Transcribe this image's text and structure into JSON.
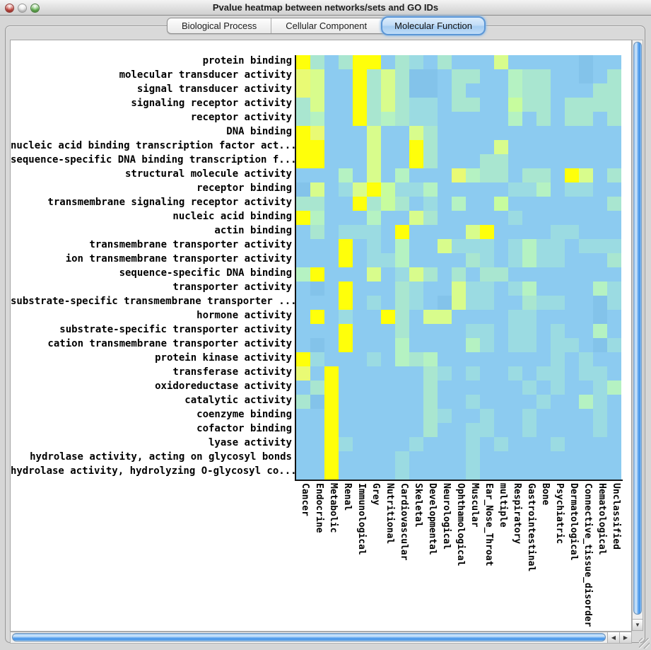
{
  "window": {
    "title": "Pvalue heatmap between networks/sets and GO IDs",
    "traffic_lights": {
      "close": "#C9463D",
      "minimize": "#E4E4E4",
      "zoom": "#67B853"
    }
  },
  "tabs": [
    {
      "label": "Biological Process",
      "selected": false
    },
    {
      "label": "Cellular Component",
      "selected": false
    },
    {
      "label": "Molecular Function",
      "selected": true
    }
  ],
  "scrollbars": {
    "left_arrow": "◀",
    "right_arrow": "▶",
    "down_arrow": "▼"
  },
  "chart_data": {
    "type": "heatmap",
    "title": "Pvalue heatmap between networks/sets and GO IDs",
    "rows": [
      "protein binding",
      "molecular transducer activity",
      "signal transducer activity",
      "signaling receptor activity",
      "receptor activity",
      "DNA binding",
      "nucleic acid binding transcription factor act...",
      "sequence-specific DNA binding transcription f...",
      "structural molecule activity",
      "receptor binding",
      "transmembrane signaling receptor activity",
      "nucleic acid binding",
      "actin binding",
      "transmembrane transporter activity",
      "ion transmembrane transporter activity",
      "sequence-specific DNA binding",
      "transporter activity",
      "substrate-specific transmembrane transporter ...",
      "hormone activity",
      "substrate-specific transporter activity",
      "cation transmembrane transporter activity",
      "protein kinase activity",
      "transferase activity",
      "oxidoreductase activity",
      "catalytic activity",
      "coenzyme binding",
      "cofactor binding",
      "lyase activity",
      "hydrolase activity, acting on glycosyl bonds",
      "hydrolase activity, hydrolyzing O-glycosyl co..."
    ],
    "columns": [
      "Cancer",
      "Endocrine",
      "Metabolic",
      "Renal",
      "Immunological",
      "Grey",
      "Nutritional",
      "Cardiovascular",
      "Skeletal",
      "Developmental",
      "Neurological",
      "Ophthamological",
      "Muscular",
      "Ear_Nose_Throat",
      "multiple",
      "Respiratory",
      "Gastrointestinal",
      "Bone",
      "Psychiatric",
      "Dermatological",
      "Connective_tissue_disorder",
      "Hematological",
      "Unclassified"
    ],
    "palette": {
      "b": "#8CCBF0",
      "B": "#83C3EA",
      "t": "#9BDBE2",
      "m": "#A9E6D0",
      "g": "#B5F2C2",
      "G": "#C7FC9E",
      "y": "#D8FC8C",
      "x": "#E9FA74",
      "Y": "#FFFF0A"
    },
    "cells": [
      "YmbmYYbmtbmbbbybbbbbBbb",
      "xybbYmymBBbmmbbgmmbbBbm",
      "xybbYmymBBbmbbbgmmbbbmm",
      "mybbYmymttbmmbbGmmbmmmm",
      "mgbbYmgmttbbbbbgbmbmmbm",
      "Yxbbbybbymbbbbbbbbbbbbb",
      "YYbbbybbYmbbbbybbbbbbbb",
      "YYbbbybbYmbbbmmbbbbbbbb",
      "bbbgbybgbbbxgmmbmmbYybm",
      "BybtyYGttgbbbbbttgbttbb",
      "mmbbYmGmbtbgbbGbbbbbbbm",
      "Ygbbbgbbymbbbbbtbbbbbbb",
      "bmbtttbYbbbbyYbbbbttbbb",
      "bbbYbtbgbbytttbtgttbttt",
      "bbbYbttgbbbbmtbtgttbbbm",
      "gYbbbybtymbmbmmbbbbbbbb",
      "bBbYbbbmtbbyttbtgbbbbgt",
      "bbbYbtbmtbByttbbmttbbBt",
      "bYbtbbYmbyybbbbttbbbbBb",
      "bbbYbbbmbbbbttbttbtbbgb",
      "bBbYbbbgbbbbgtbttbttbBt",
      "Ytbbbtbgmgbbbbbbbbtbtbb",
      "xbYbbbbbbmtbtbbtbttbttb",
      "bmYbbbbbbmbbbbbbtbtbbtg",
      "mBYbbbbbbmbbtbbbbtbbgtb",
      "bbYbbbbbbmtbbtbbtbbbbtb",
      "bbYbbbbbbmbbttbbtbbbbtb",
      "bbYtbbbbtbbbtbtbbbtbbbb",
      "bbYbbbbtbbbbtbbbbbbbbbb",
      "bbYbbbbtbbbbtbbbbbbbbbb"
    ]
  }
}
